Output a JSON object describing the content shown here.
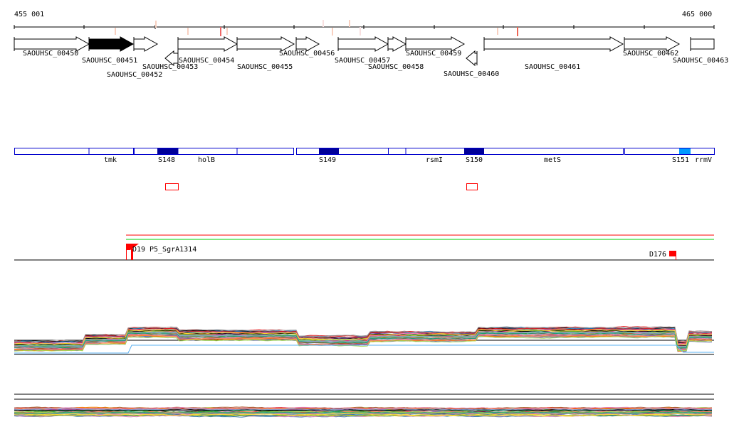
{
  "ruler": {
    "start_label": "455 001",
    "end_label": "465 000"
  },
  "genes": [
    "SAOUHSC_00450",
    "SAOUHSC_00451",
    "SAOUHSC_00452",
    "SAOUHSC_00453",
    "SAOUHSC_00454",
    "SAOUHSC_00455",
    "SAOUHSC_00456",
    "SAOUHSC_00457",
    "SAOUHSC_00458",
    "SAOUHSC_00459",
    "SAOUHSC_00460",
    "SAOUHSC_00461",
    "SAOUHSC_00462",
    "SAOUHSC_00463"
  ],
  "features": [
    "tmk",
    "S148",
    "holB",
    "S149",
    "rsmI",
    "S150",
    "metS",
    "S151",
    "rrmV"
  ],
  "markers": {
    "left_labels": [
      "D19",
      "P5_SgrA1314"
    ],
    "right_label": "D176"
  },
  "colors": {
    "gene_selected": "#000000",
    "feature_border": "#0000cc",
    "segment_dark": "#000099",
    "segment_light": "#0099ff",
    "marker": "#ff0000",
    "green_line": "#00cc00"
  }
}
